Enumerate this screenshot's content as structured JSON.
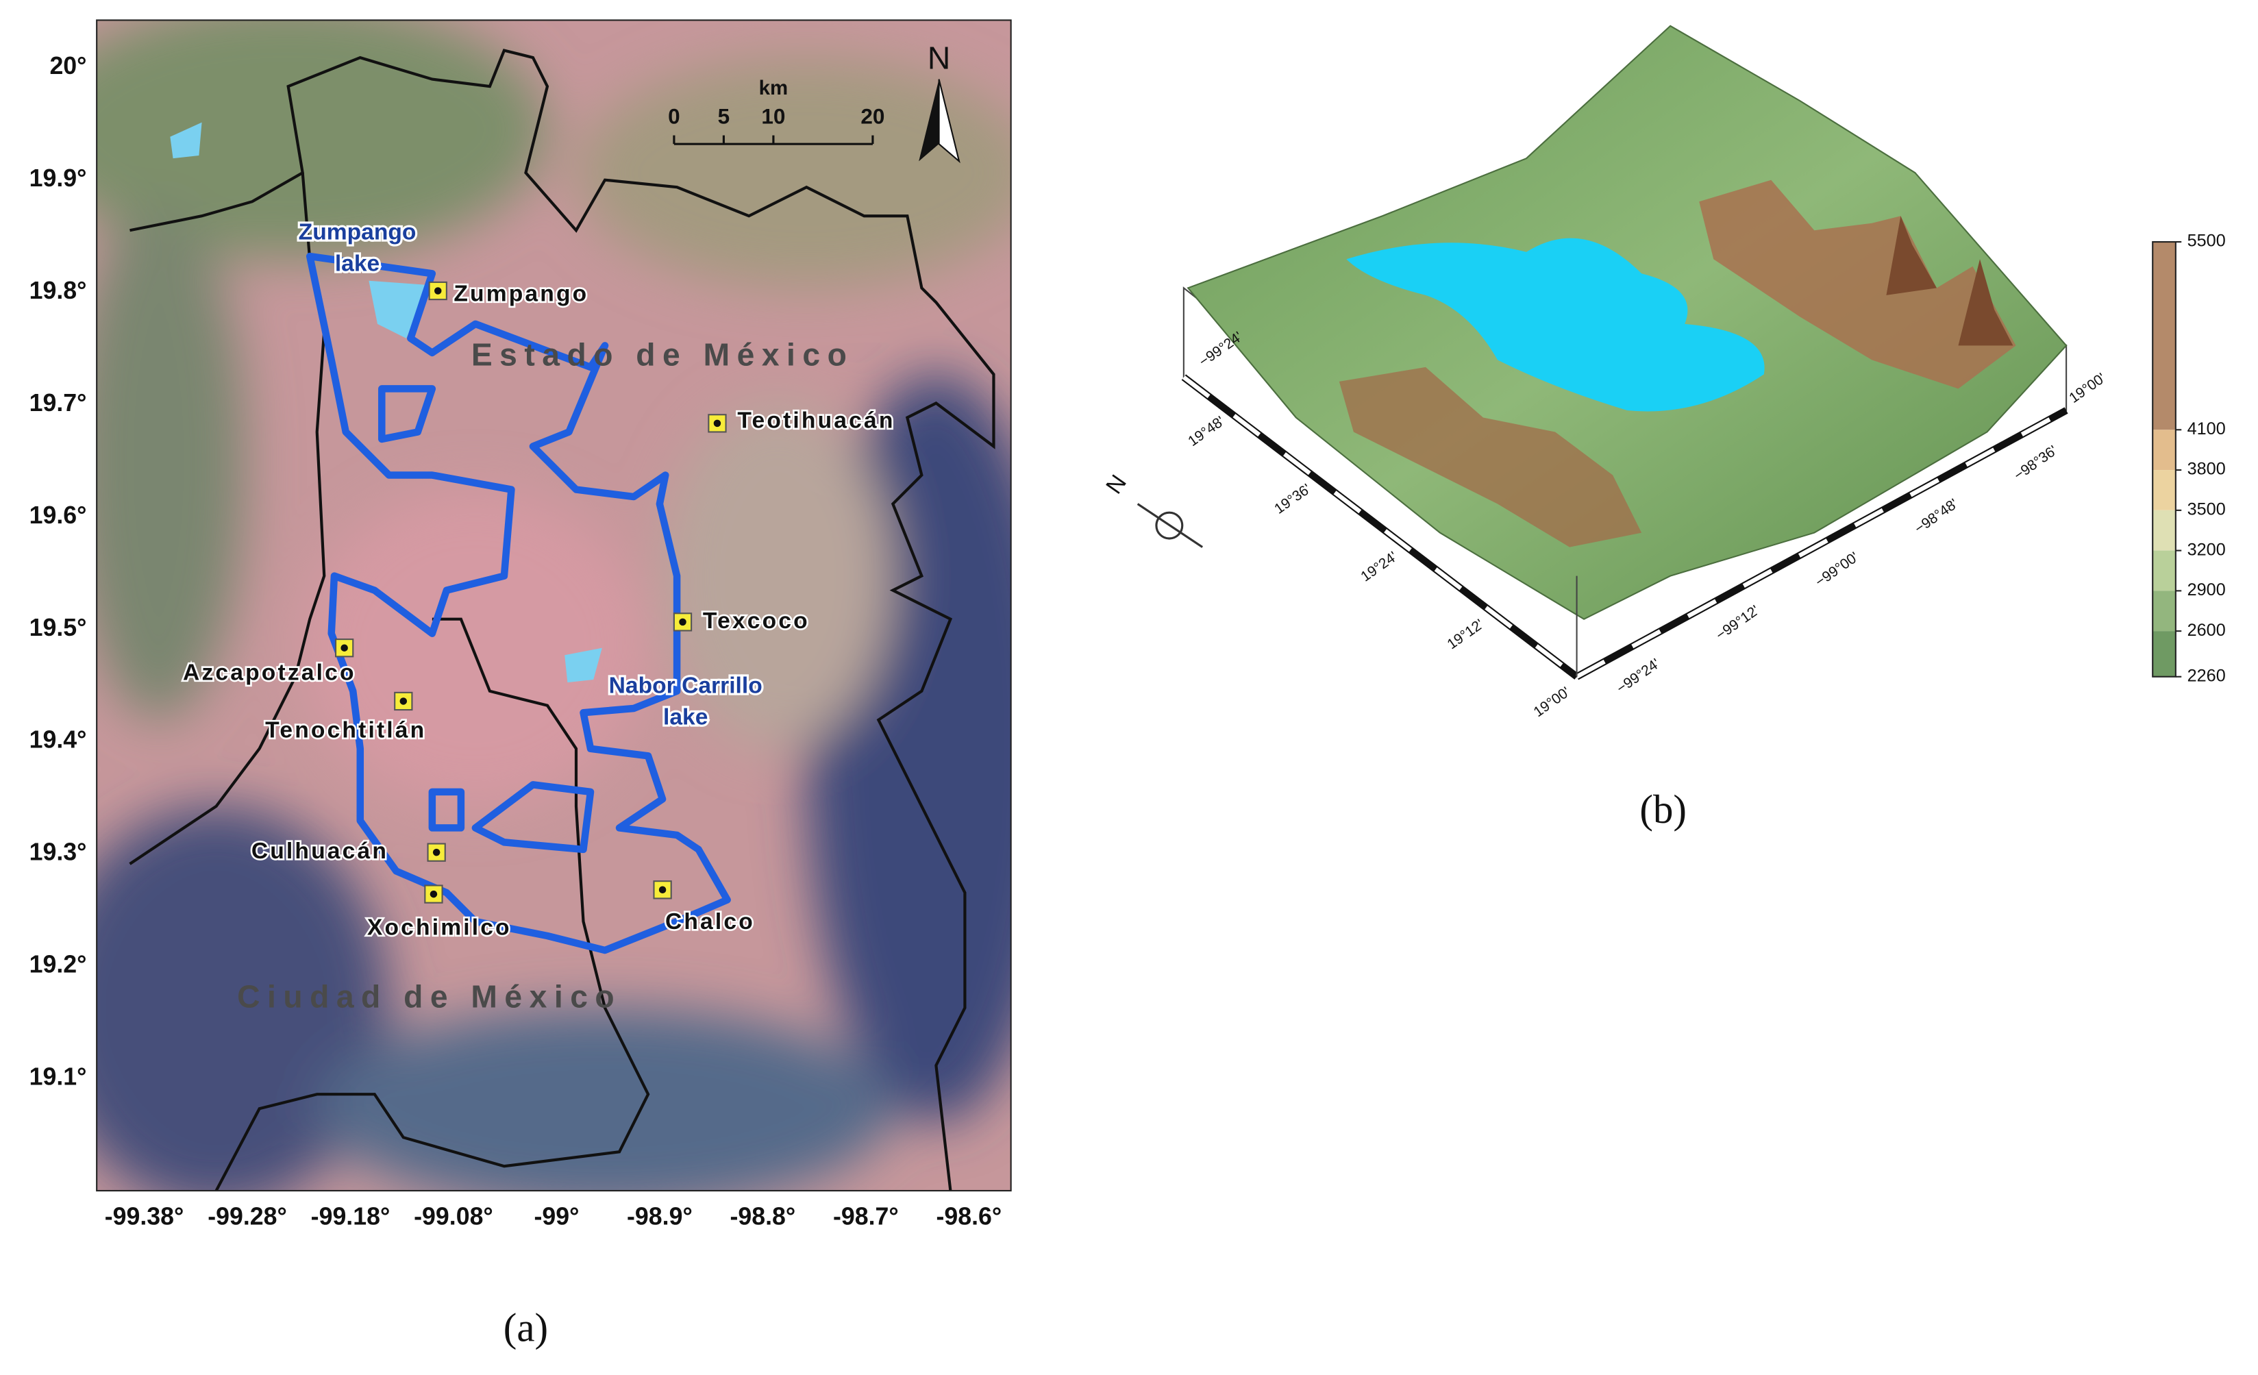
{
  "panel_a": {
    "caption": "(a)",
    "lat_labels": [
      "20°",
      "19.9°",
      "19.8°",
      "19.7°",
      "19.6°",
      "19.5°",
      "19.4°",
      "19.3°",
      "19.2°",
      "19.1°"
    ],
    "lon_labels": [
      "-99.38°",
      "-99.28°",
      "-99.18°",
      "-99.08°",
      "-99°",
      "-98.9°",
      "-98.8°",
      "-98.7°",
      "-98.6°"
    ],
    "scale": {
      "unit": "km",
      "ticks": [
        0,
        5,
        10,
        20
      ]
    },
    "north": "N",
    "regions": [
      "Estado de México",
      "Ciudad de México"
    ],
    "lakes": [
      [
        "Zumpango",
        "lake"
      ],
      [
        "Nabor Carrillo",
        "lake"
      ]
    ],
    "sites": [
      "Zumpango",
      "Teotihuacán",
      "Texcoco",
      "Azcapotzalco",
      "Tenochtitlán",
      "Culhuacán",
      "Xochimilco",
      "Chalco"
    ]
  },
  "panel_b": {
    "caption": "(b)",
    "lat_labels": [
      "19°48'",
      "19°36'",
      "19°24'",
      "19°12'",
      "19°00'"
    ],
    "lon_labels": [
      "−99°24'",
      "−99°12'",
      "−99°00'",
      "−98°48'",
      "−98°36'"
    ],
    "corner_labels": [
      "−99°24'",
      "19°00'"
    ],
    "north": "N",
    "colorbar": {
      "range": [
        2260,
        5500
      ],
      "ticks": [
        5500,
        4100,
        3800,
        3500,
        3200,
        2900,
        2600,
        2260
      ],
      "colors": [
        "#b48a6a",
        "#e3bd8d",
        "#ecd3a0",
        "#dfe0b4",
        "#b9d09a",
        "#93b67e",
        "#6f9a63"
      ]
    }
  }
}
